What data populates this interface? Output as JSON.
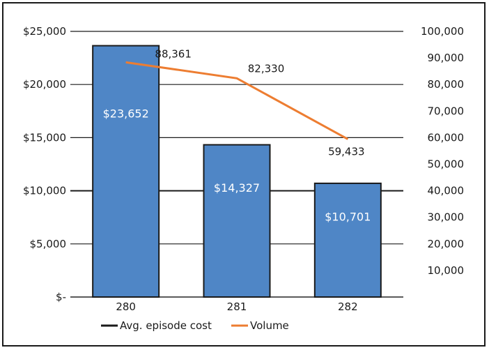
{
  "chart_data": {
    "type": "bar",
    "title": "",
    "categories": [
      "280",
      "281",
      "282"
    ],
    "series": [
      {
        "name": "Avg. episode cost",
        "type": "bar",
        "axis": "left",
        "values": [
          23652,
          14327,
          10701
        ],
        "labels": [
          "$23,652",
          "$14,327",
          "$10,701"
        ],
        "color": "#4f86c6"
      },
      {
        "name": "Volume",
        "type": "line",
        "axis": "right",
        "values": [
          88361,
          82330,
          59433
        ],
        "labels": [
          "88,361",
          "82,330",
          "59,433"
        ],
        "color": "#ed7d31"
      }
    ],
    "y_left": {
      "lim": [
        0,
        25000
      ],
      "ticks": [
        0,
        5000,
        10000,
        15000,
        20000,
        25000
      ],
      "tick_labels": [
        "$-",
        "$5,000",
        "$10,000",
        "$15,000",
        "$20,000",
        "$25,000"
      ]
    },
    "y_right": {
      "lim": [
        0,
        100000
      ],
      "ticks": [
        10000,
        20000,
        30000,
        40000,
        50000,
        60000,
        70000,
        80000,
        90000,
        100000
      ],
      "tick_labels": [
        "10,000",
        "20,000",
        "30,000",
        "40,000",
        "50,000",
        "60,000",
        "70,000",
        "80,000",
        "90,000",
        "100,000"
      ]
    },
    "grid": true,
    "legend": {
      "position": "bottom",
      "items": [
        {
          "label": "Avg. episode cost",
          "color": "#1a1a1a"
        },
        {
          "label": "Volume",
          "color": "#ed7d31"
        }
      ]
    }
  }
}
